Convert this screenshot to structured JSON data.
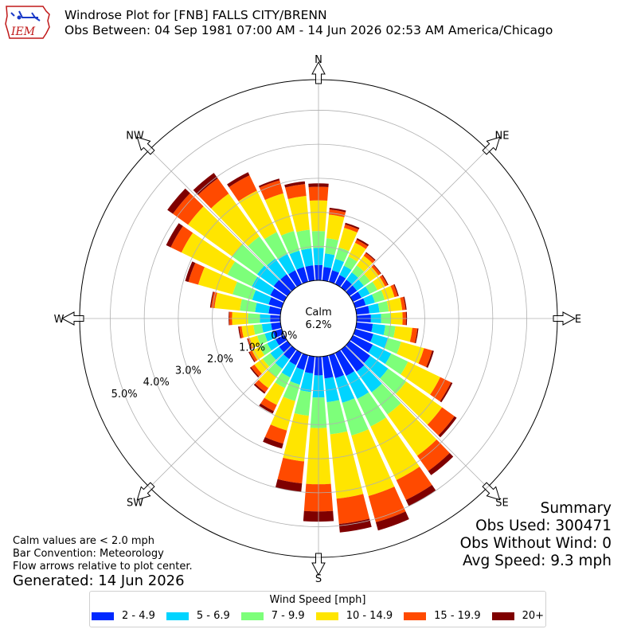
{
  "header": {
    "title_line1": "Windrose Plot for [FNB] FALLS CITY/BRENN",
    "title_line2": "Obs Between: 04 Sep 1981 07:00 AM - 14 Jun 2026 02:53 AM America/Chicago",
    "logo_text": "IEM"
  },
  "summary": {
    "heading": "Summary",
    "obs_used": "Obs Used: 300471",
    "obs_without_wind": "Obs Without Wind: 0",
    "avg_speed": "Avg Speed: 9.3 mph"
  },
  "notes": {
    "line1": "Calm values are < 2.0 mph",
    "line2": "Bar Convention: Meteorology",
    "line3": "Flow arrows relative to plot center."
  },
  "generated": "Generated: 14 Jun 2026",
  "legend": {
    "title": "Wind Speed [mph]",
    "items": [
      {
        "label": "2 - 4.9",
        "color": "#0029ff"
      },
      {
        "label": "5 - 6.9",
        "color": "#00d4ff"
      },
      {
        "label": "7 - 9.9",
        "color": "#7dff7a"
      },
      {
        "label": "10 - 14.9",
        "color": "#ffe500"
      },
      {
        "label": "15 - 19.9",
        "color": "#ff4a00"
      },
      {
        "label": "20+",
        "color": "#7f0000"
      }
    ]
  },
  "chart_data": {
    "type": "windrose",
    "calm_label": "Calm",
    "calm_value": "6.2%",
    "radial_tick_labels": [
      "0.0%",
      "1.0%",
      "2.0%",
      "3.0%",
      "4.0%",
      "5.0%"
    ],
    "radial_ticks": [
      0,
      1,
      2,
      3,
      4,
      5
    ],
    "rmax": 5.9,
    "directions": [
      "N",
      "NE",
      "E",
      "SE",
      "S",
      "SW",
      "W",
      "NW"
    ],
    "sector_degrees": [
      0,
      10,
      20,
      30,
      40,
      50,
      60,
      70,
      80,
      90,
      100,
      110,
      120,
      130,
      140,
      150,
      160,
      170,
      180,
      190,
      200,
      210,
      220,
      230,
      240,
      250,
      260,
      270,
      280,
      290,
      300,
      310,
      320,
      330,
      340,
      350
    ],
    "speed_bins": [
      "2 - 4.9",
      "5 - 6.9",
      "7 - 9.9",
      "10 - 14.9",
      "15 - 19.9",
      "20+"
    ],
    "colors": [
      "#0029ff",
      "#00d4ff",
      "#7dff7a",
      "#ffe500",
      "#ff4a00",
      "#7f0000"
    ],
    "cumulative_percent": [
      [
        0.45,
        0.95,
        1.45,
        2.35,
        2.75,
        2.85
      ],
      [
        0.4,
        0.8,
        1.25,
        1.95,
        2.1,
        2.15
      ],
      [
        0.35,
        0.7,
        1.05,
        1.65,
        1.75,
        1.8
      ],
      [
        0.3,
        0.6,
        0.9,
        1.35,
        1.45,
        1.5
      ],
      [
        0.28,
        0.55,
        0.8,
        1.15,
        1.25,
        1.28
      ],
      [
        0.27,
        0.52,
        0.75,
        1.05,
        1.13,
        1.15
      ],
      [
        0.28,
        0.55,
        0.8,
        1.05,
        1.13,
        1.16
      ],
      [
        0.32,
        0.6,
        0.9,
        1.2,
        1.3,
        1.33
      ],
      [
        0.38,
        0.68,
        0.95,
        1.35,
        1.45,
        1.48
      ],
      [
        0.42,
        0.72,
        1.0,
        1.35,
        1.45,
        1.48
      ],
      [
        0.48,
        0.85,
        1.15,
        1.65,
        1.8,
        1.83
      ],
      [
        0.55,
        1.0,
        1.4,
        2.1,
        2.35,
        2.4
      ],
      [
        0.65,
        1.25,
        1.8,
        2.85,
        3.2,
        3.25
      ],
      [
        0.75,
        1.4,
        2.05,
        3.35,
        3.8,
        3.88
      ],
      [
        0.8,
        1.55,
        2.35,
        3.85,
        4.4,
        4.55
      ],
      [
        0.75,
        1.5,
        2.4,
        4.15,
        4.8,
        5.0
      ],
      [
        0.7,
        1.45,
        2.45,
        4.3,
        5.1,
        5.35
      ],
      [
        0.65,
        1.35,
        2.3,
        4.2,
        4.95,
        5.2
      ],
      [
        0.55,
        1.2,
        2.1,
        3.75,
        4.55,
        4.85
      ],
      [
        0.5,
        1.05,
        1.75,
        3.1,
        3.75,
        4.0
      ],
      [
        0.45,
        0.9,
        1.4,
        2.3,
        2.7,
        2.85
      ],
      [
        0.4,
        0.8,
        1.15,
        1.7,
        1.9,
        1.98
      ],
      [
        0.35,
        0.7,
        1.0,
        1.4,
        1.55,
        1.6
      ],
      [
        0.3,
        0.62,
        0.9,
        1.2,
        1.32,
        1.36
      ],
      [
        0.28,
        0.55,
        0.8,
        1.05,
        1.13,
        1.16
      ],
      [
        0.27,
        0.52,
        0.75,
        0.98,
        1.04,
        1.06
      ],
      [
        0.28,
        0.55,
        0.8,
        1.15,
        1.22,
        1.25
      ],
      [
        0.3,
        0.6,
        0.95,
        1.42,
        1.5,
        1.52
      ],
      [
        0.35,
        0.75,
        1.2,
        1.95,
        2.05,
        2.08
      ],
      [
        0.4,
        0.9,
        1.5,
        2.55,
        2.85,
        2.95
      ],
      [
        0.45,
        1.05,
        1.85,
        3.35,
        3.7,
        3.85
      ],
      [
        0.5,
        1.1,
        2.0,
        3.6,
        4.15,
        4.35
      ],
      [
        0.48,
        1.05,
        1.85,
        3.4,
        3.95,
        4.15
      ],
      [
        0.45,
        0.98,
        1.7,
        3.05,
        3.55,
        3.65
      ],
      [
        0.45,
        0.95,
        1.55,
        2.7,
        3.1,
        3.15
      ],
      [
        0.45,
        0.95,
        1.5,
        2.5,
        2.85,
        2.93
      ]
    ]
  }
}
